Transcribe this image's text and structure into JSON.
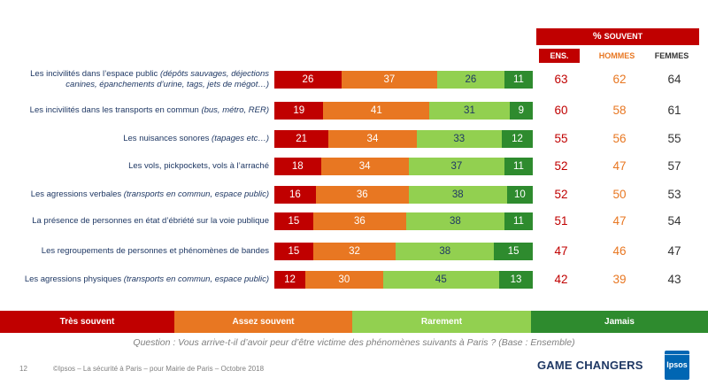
{
  "header": {
    "main_prefix": "%",
    "main_label": "Souvent",
    "cols": [
      "Ens.",
      "Hommes",
      "Femmes"
    ]
  },
  "colors": {
    "tres": "#c00000",
    "assez": "#e87722",
    "rarement": "#92d050",
    "jamais": "#2e8b2e"
  },
  "chart_data": {
    "type": "bar",
    "orientation": "horizontal",
    "stacked": true,
    "categories": [
      "Les incivilités dans l’espace public (dépôts sauvages, déjections canines, épanchements d’urine, tags, jets de mégot…)",
      "Les incivilités dans les transports en commun (bus, métro, RER)",
      "Les nuisances sonores (tapages etc…)",
      "Les vols, pickpockets, vols à l’arraché",
      "Les agressions verbales (transports en commun, espace public)",
      "La présence de personnes en état d’ébriété sur la voie publique",
      "Les regroupements de personnes et phénomènes de bandes",
      "Les agressions physiques (transports en commun, espace public)"
    ],
    "series": [
      {
        "name": "Très souvent",
        "values": [
          26,
          19,
          21,
          18,
          16,
          15,
          15,
          12
        ]
      },
      {
        "name": "Assez souvent",
        "values": [
          37,
          41,
          34,
          34,
          36,
          36,
          32,
          30
        ]
      },
      {
        "name": "Rarement",
        "values": [
          26,
          31,
          33,
          37,
          38,
          38,
          38,
          45
        ]
      },
      {
        "name": "Jamais",
        "values": [
          11,
          9,
          12,
          11,
          10,
          11,
          15,
          13
        ]
      }
    ],
    "xlim": [
      0,
      100
    ],
    "souvent": {
      "ens": [
        63,
        60,
        55,
        52,
        52,
        51,
        47,
        42
      ],
      "hommes": [
        62,
        58,
        56,
        47,
        50,
        47,
        46,
        39
      ],
      "femmes": [
        64,
        61,
        55,
        57,
        53,
        54,
        47,
        43
      ]
    }
  },
  "rows": [
    {
      "main": "Les incivilités dans l’espace public",
      "detail": "(dépôts sauvages, déjections canines, épanchements d’urine, tags, jets de mégot…)"
    },
    {
      "main": "Les incivilités dans les transports en commun",
      "detail": "(bus, métro, RER)"
    },
    {
      "main": "Les nuisances sonores",
      "detail": "(tapages etc…)"
    },
    {
      "main": "Les vols, pickpockets, vols à l’arraché",
      "detail": ""
    },
    {
      "main": "Les agressions verbales",
      "detail": "(transports en commun, espace public)"
    },
    {
      "main": "La présence de personnes en état d’ébriété sur la voie publique",
      "detail": ""
    },
    {
      "main": "Les regroupements de personnes et phénomènes de bandes",
      "detail": ""
    },
    {
      "main": "Les agressions physiques",
      "detail": "(transports en commun, espace public)"
    }
  ],
  "legend": [
    "Très souvent",
    "Assez souvent",
    "Rarement",
    "Jamais"
  ],
  "question": "Question : Vous arrive-t-il d’avoir peur d’être victime des phénomènes suivants à Paris ? (Base : Ensemble)",
  "footer": {
    "page": "12",
    "text": "©Ipsos – La sécurité à Paris – pour Mairie de Paris – Octobre 2018",
    "tagline": "GAME CHANGERS",
    "logo": "Ipsos"
  }
}
